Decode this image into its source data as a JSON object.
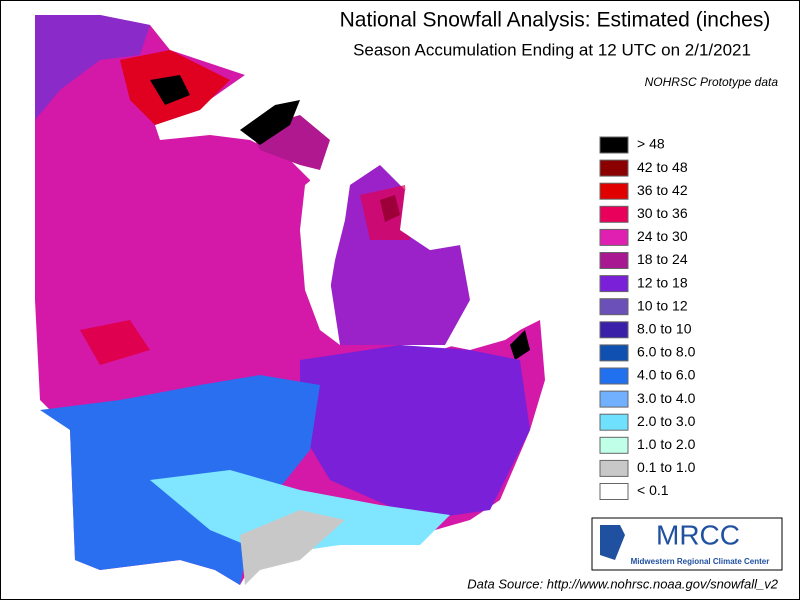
{
  "header": {
    "title": "National Snowfall Analysis: Estimated (inches)",
    "subtitle": "Season Accumulation Ending at 12 UTC on 2/1/2021",
    "note": "NOHRSC Prototype data"
  },
  "legend": [
    {
      "label": "> 48",
      "color": "#000000"
    },
    {
      "label": "42 to 48",
      "color": "#8b0000"
    },
    {
      "label": "36 to 42",
      "color": "#e00000"
    },
    {
      "label": "30 to 36",
      "color": "#e8005a"
    },
    {
      "label": "24 to 30",
      "color": "#e020b0"
    },
    {
      "label": "18 to 24",
      "color": "#a81890"
    },
    {
      "label": "12 to 18",
      "color": "#7a20d8"
    },
    {
      "label": "10 to 12",
      "color": "#6a50b8"
    },
    {
      "label": "8.0 to 10",
      "color": "#3a20a8"
    },
    {
      "label": "6.0 to 8.0",
      "color": "#1050b0"
    },
    {
      "label": "4.0 to 6.0",
      "color": "#2070f0"
    },
    {
      "label": "3.0 to 4.0",
      "color": "#70b0ff"
    },
    {
      "label": "2.0 to 3.0",
      "color": "#70e0ff"
    },
    {
      "label": "1.0 to 2.0",
      "color": "#c0ffe8"
    },
    {
      "label": "0.1 to 1.0",
      "color": "#c8c8c8"
    },
    {
      "label": "< 0.1",
      "color": "#ffffff"
    }
  ],
  "footer": {
    "source": "Data Source: http://www.nohrsc.noaa.gov/snowfall_v2"
  },
  "logo": {
    "name": "MRCC",
    "full_name": "Midwestern Regional Climate Center"
  }
}
